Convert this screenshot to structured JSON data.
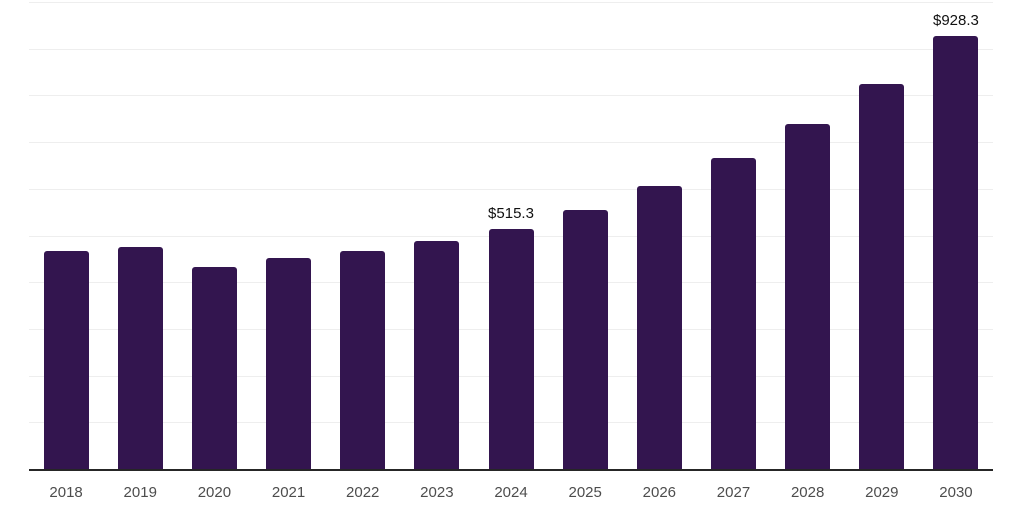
{
  "page": {
    "background": "#ffffff"
  },
  "chart_data": {
    "type": "bar",
    "title": "",
    "xlabel": "",
    "ylabel": "",
    "categories": [
      "2018",
      "2019",
      "2020",
      "2021",
      "2022",
      "2023",
      "2024",
      "2025",
      "2026",
      "2027",
      "2028",
      "2029",
      "2030"
    ],
    "values": [
      469,
      477,
      435,
      454,
      468,
      491,
      515.3,
      557,
      608,
      668,
      740,
      826,
      928.3
    ],
    "data_labels": [
      "",
      "",
      "",
      "",
      "",
      "",
      "$515.3",
      "",
      "",
      "",
      "",
      "",
      "$928.3"
    ],
    "ylim": [
      0,
      1000
    ],
    "gridline_interval": 100,
    "grid": "horizontal",
    "legend_position": "none",
    "colors": {
      "bar": "#33154f",
      "gridline": "#eeeeee",
      "axis_line": "#262626",
      "tick_label": "#4d4d4d",
      "value_label": "#111111"
    }
  }
}
